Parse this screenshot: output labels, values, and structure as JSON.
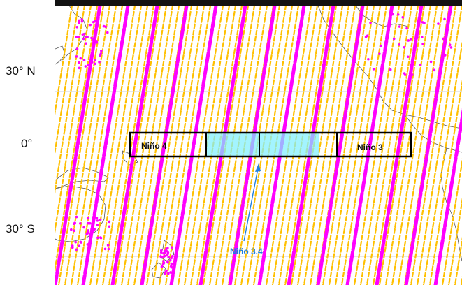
{
  "latitude_labels": [
    "30° N",
    "0°",
    "30° S"
  ],
  "regions": [
    {
      "name": "Niño 4",
      "label": "Niño 4"
    },
    {
      "name": "Niño 3.4",
      "label": "Niño 3.4"
    },
    {
      "name": "Niño 3",
      "label": "Niño 3"
    }
  ],
  "colors": {
    "swath_primary": "#ff00ff",
    "swath_secondary": "#ffc000",
    "nino34_fill": "#7ff0ff",
    "annotation": "#1f7fe0",
    "box_outline": "#000000",
    "coastline": "#555555",
    "frame": "#121212"
  }
}
